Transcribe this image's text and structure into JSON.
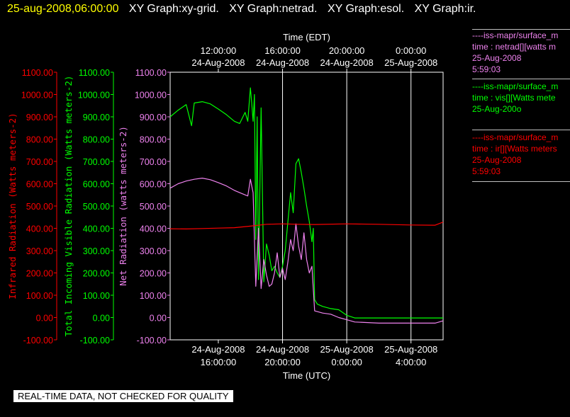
{
  "header": {
    "timestamp": "25-aug-2008,06:00:00",
    "graphs": [
      "XY Graph:xy-grid.",
      "XY Graph:netrad.",
      "XY Graph:esol.",
      "XY Graph:ir."
    ]
  },
  "legend": [
    {
      "color": "#ee82ee",
      "lines": [
        "----iss-mapr/surface_m",
        "time : netrad[][watts m",
        "25-Aug-2008",
        "5:59:03"
      ]
    },
    {
      "color": "#00ff00",
      "lines": [
        "----iss-mapr/surface_m",
        "time : vis[][Watts mete",
        "25-Aug-200o"
      ]
    },
    {
      "color": "#ff0000",
      "lines": [
        "----iss-mapr/surface_m",
        "time : ir[][Watts meters",
        "25-Aug-2008",
        "5:59:03"
      ]
    }
  ],
  "footer_note": "REAL-TIME DATA, NOT CHECKED FOR QUALITY",
  "chart_data": {
    "type": "line",
    "x_label_bottom": "Time (UTC)",
    "x_label_top": "Time (EDT)",
    "x_range_utc": [
      "2008-08-24 13:00",
      "2008-08-25 06:00"
    ],
    "x_ticks_bottom": [
      {
        "x": "2008-08-24 16:00",
        "label1": "24-Aug-2008",
        "label2": "16:00:00"
      },
      {
        "x": "2008-08-24 20:00",
        "label1": "24-Aug-2008",
        "label2": "20:00:00"
      },
      {
        "x": "2008-08-25 00:00",
        "label1": "25-Aug-2008",
        "label2": "0:00:00"
      },
      {
        "x": "2008-08-25 04:00",
        "label1": "25-Aug-2008",
        "label2": "4:00:00"
      }
    ],
    "x_ticks_top": [
      {
        "x": "2008-08-24 16:00",
        "label1": "12:00:00",
        "label2": "24-Aug-2008"
      },
      {
        "x": "2008-08-24 20:00",
        "label1": "16:00:00",
        "label2": "24-Aug-2008"
      },
      {
        "x": "2008-08-25 00:00",
        "label1": "20:00:00",
        "label2": "24-Aug-2008"
      },
      {
        "x": "2008-08-25 04:00",
        "label1": "0:00:00",
        "label2": "25-Aug-2008"
      }
    ],
    "vertical_grid_at": [
      "2008-08-24 20:00",
      "2008-08-25 00:00",
      "2008-08-25 04:00"
    ],
    "y_range": [
      -100,
      1100
    ],
    "y_ticks": [
      -100,
      0,
      100,
      200,
      300,
      400,
      500,
      600,
      700,
      800,
      900,
      1000,
      1100
    ],
    "y_tick_labels": [
      "-100.00",
      "0.00",
      "100.00",
      "200.00",
      "300.00",
      "400.00",
      "500.00",
      "600.00",
      "700.00",
      "800.00",
      "900.00",
      "1000.00",
      "1100.00"
    ],
    "axes": [
      {
        "label": "Infrared Radiation (Watts meters-2)",
        "color": "#ff0000"
      },
      {
        "label": "Total Incoming Visible Radiation (Watts meters-2)",
        "color": "#00ff00"
      },
      {
        "label": "Net Radiation (watts meters-2)",
        "color": "#ee82ee"
      }
    ],
    "series": [
      {
        "color": "#00ff00",
        "points": [
          [
            "2008-08-24 13:00",
            900
          ],
          [
            "2008-08-24 13:30",
            930
          ],
          [
            "2008-08-24 14:00",
            955
          ],
          [
            "2008-08-24 14:20",
            860
          ],
          [
            "2008-08-24 14:30",
            962
          ],
          [
            "2008-08-24 15:00",
            968
          ],
          [
            "2008-08-24 15:30",
            958
          ],
          [
            "2008-08-24 16:00",
            935
          ],
          [
            "2008-08-24 16:30",
            910
          ],
          [
            "2008-08-24 17:00",
            880
          ],
          [
            "2008-08-24 17:20",
            870
          ],
          [
            "2008-08-24 17:40",
            920
          ],
          [
            "2008-08-24 17:50",
            880
          ],
          [
            "2008-08-24 18:00",
            1030
          ],
          [
            "2008-08-24 18:05",
            960
          ],
          [
            "2008-08-24 18:10",
            880
          ],
          [
            "2008-08-24 18:15",
            1000
          ],
          [
            "2008-08-24 18:20",
            350
          ],
          [
            "2008-08-24 18:25",
            900
          ],
          [
            "2008-08-24 18:30",
            170
          ],
          [
            "2008-08-24 18:40",
            940
          ],
          [
            "2008-08-24 18:50",
            160
          ],
          [
            "2008-08-24 19:00",
            330
          ],
          [
            "2008-08-24 19:10",
            280
          ],
          [
            "2008-08-24 19:20",
            210
          ],
          [
            "2008-08-24 19:30",
            230
          ],
          [
            "2008-08-24 19:40",
            200
          ],
          [
            "2008-08-24 19:50",
            180
          ],
          [
            "2008-08-24 20:00",
            230
          ],
          [
            "2008-08-24 20:10",
            300
          ],
          [
            "2008-08-24 20:20",
            430
          ],
          [
            "2008-08-24 20:30",
            560
          ],
          [
            "2008-08-24 20:40",
            470
          ],
          [
            "2008-08-24 20:50",
            690
          ],
          [
            "2008-08-24 21:00",
            712
          ],
          [
            "2008-08-24 21:10",
            650
          ],
          [
            "2008-08-24 21:20",
            580
          ],
          [
            "2008-08-24 21:30",
            500
          ],
          [
            "2008-08-24 21:40",
            430
          ],
          [
            "2008-08-24 21:50",
            340
          ],
          [
            "2008-08-24 21:55",
            400
          ],
          [
            "2008-08-24 22:00",
            80
          ],
          [
            "2008-08-24 22:10",
            60
          ],
          [
            "2008-08-24 22:30",
            50
          ],
          [
            "2008-08-24 23:00",
            40
          ],
          [
            "2008-08-24 23:30",
            35
          ],
          [
            "2008-08-25 00:00",
            10
          ],
          [
            "2008-08-25 00:30",
            -2
          ],
          [
            "2008-08-25 02:00",
            -2
          ],
          [
            "2008-08-25 04:00",
            -2
          ],
          [
            "2008-08-25 06:00",
            -2
          ]
        ]
      },
      {
        "color": "#ee82ee",
        "points": [
          [
            "2008-08-24 13:00",
            580
          ],
          [
            "2008-08-24 13:30",
            600
          ],
          [
            "2008-08-24 14:00",
            612
          ],
          [
            "2008-08-24 14:30",
            620
          ],
          [
            "2008-08-24 15:00",
            625
          ],
          [
            "2008-08-24 15:30",
            618
          ],
          [
            "2008-08-24 16:00",
            605
          ],
          [
            "2008-08-24 16:30",
            590
          ],
          [
            "2008-08-24 17:00",
            570
          ],
          [
            "2008-08-24 17:30",
            555
          ],
          [
            "2008-08-24 17:50",
            545
          ],
          [
            "2008-08-24 18:00",
            620
          ],
          [
            "2008-08-24 18:10",
            560
          ],
          [
            "2008-08-24 18:20",
            140
          ],
          [
            "2008-08-24 18:30",
            400
          ],
          [
            "2008-08-24 18:40",
            130
          ],
          [
            "2008-08-24 18:50",
            260
          ],
          [
            "2008-08-24 19:00",
            190
          ],
          [
            "2008-08-24 19:10",
            140
          ],
          [
            "2008-08-24 19:20",
            150
          ],
          [
            "2008-08-24 19:30",
            200
          ],
          [
            "2008-08-24 19:40",
            290
          ],
          [
            "2008-08-24 19:50",
            180
          ],
          [
            "2008-08-24 20:00",
            220
          ],
          [
            "2008-08-24 20:10",
            170
          ],
          [
            "2008-08-24 20:20",
            250
          ],
          [
            "2008-08-24 20:30",
            350
          ],
          [
            "2008-08-24 20:40",
            300
          ],
          [
            "2008-08-24 20:50",
            420
          ],
          [
            "2008-08-24 21:00",
            320
          ],
          [
            "2008-08-24 21:10",
            260
          ],
          [
            "2008-08-24 21:20",
            380
          ],
          [
            "2008-08-24 21:30",
            260
          ],
          [
            "2008-08-24 21:40",
            200
          ],
          [
            "2008-08-24 21:50",
            230
          ],
          [
            "2008-08-24 22:00",
            30
          ],
          [
            "2008-08-24 22:30",
            20
          ],
          [
            "2008-08-24 23:00",
            15
          ],
          [
            "2008-08-24 23:30",
            0
          ],
          [
            "2008-08-25 00:00",
            -10
          ],
          [
            "2008-08-25 00:30",
            -20
          ],
          [
            "2008-08-25 02:00",
            -25
          ],
          [
            "2008-08-25 04:00",
            -25
          ],
          [
            "2008-08-25 05:30",
            -25
          ],
          [
            "2008-08-25 06:00",
            -15
          ]
        ]
      },
      {
        "color": "#ff0000",
        "points": [
          [
            "2008-08-24 13:00",
            398
          ],
          [
            "2008-08-24 14:00",
            397
          ],
          [
            "2008-08-24 15:00",
            399
          ],
          [
            "2008-08-24 16:00",
            401
          ],
          [
            "2008-08-24 17:00",
            403
          ],
          [
            "2008-08-24 18:00",
            410
          ],
          [
            "2008-08-24 19:00",
            418
          ],
          [
            "2008-08-24 20:00",
            420
          ],
          [
            "2008-08-24 21:00",
            418
          ],
          [
            "2008-08-24 22:00",
            417
          ],
          [
            "2008-08-25 00:00",
            420
          ],
          [
            "2008-08-25 02:00",
            418
          ],
          [
            "2008-08-25 04:00",
            415
          ],
          [
            "2008-08-25 05:30",
            414
          ],
          [
            "2008-08-25 06:00",
            428
          ]
        ]
      }
    ]
  }
}
